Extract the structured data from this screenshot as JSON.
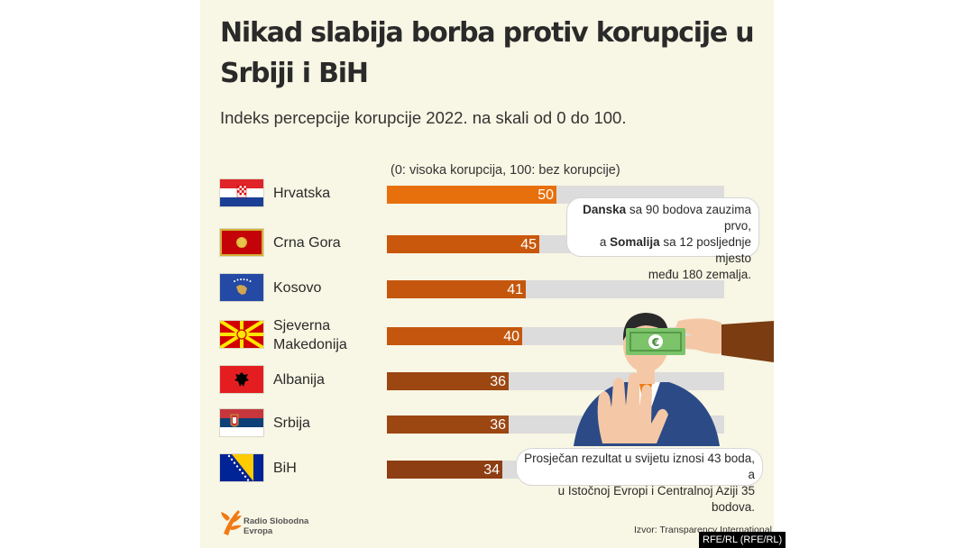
{
  "colors": {
    "background": "#f8f6e4",
    "track": "#dcdcdc",
    "bar_colors": [
      "#e8700c",
      "#c9580c",
      "#c4570d",
      "#c4570d",
      "#9c4612",
      "#9c4612",
      "#8d3e12"
    ]
  },
  "chart_data": {
    "type": "bar",
    "orientation": "horizontal",
    "title": "Nikad slabija borba protiv korupcije u Srbiji i BiH",
    "subtitle": "Indeks percepcije korupcije 2022. na skali od 0 do 100.",
    "scale_note": "(0: visoka korupcija, 100: bez korupcije)",
    "xlim": [
      0,
      100
    ],
    "grid": false,
    "legend": "none",
    "categories": [
      "Hrvatska",
      "Crna Gora",
      "Kosovo",
      "Sjeverna Makedonija",
      "Albanija",
      "Srbija",
      "BiH"
    ],
    "category_lines": [
      [
        "Hrvatska"
      ],
      [
        "Crna Gora"
      ],
      [
        "Kosovo"
      ],
      [
        "Sjeverna",
        "Makedonija"
      ],
      [
        "Albanija"
      ],
      [
        "Srbija"
      ],
      [
        "BiH"
      ]
    ],
    "values": [
      50,
      45,
      41,
      40,
      36,
      36,
      34
    ],
    "flags": [
      "croatia-flag",
      "montenegro-flag",
      "kosovo-flag",
      "north-macedonia-flag",
      "albania-flag",
      "serbia-flag",
      "bih-flag"
    ],
    "annotations": {
      "top": {
        "line1_bold": "Danska",
        "line1_rest": " sa 90 bodova zauzima prvo,",
        "line2_pre": "a ",
        "line2_bold": "Somalija",
        "line2_rest": " sa 12 posljednje mjesto",
        "line3": "među 180 zemalja."
      },
      "bottom": {
        "line1": "Prosječan rezultat u svijetu iznosi 43 boda, a",
        "line2": "u Istočnoj Evropi i Centralnoj Aziji 35 bodova."
      }
    },
    "source": "Izvor: Transparency International"
  },
  "branding": {
    "logo_line1": "Radio Slobodna",
    "logo_line2": "Evropa",
    "credit": "RFE/RL (RFE/RL)"
  }
}
